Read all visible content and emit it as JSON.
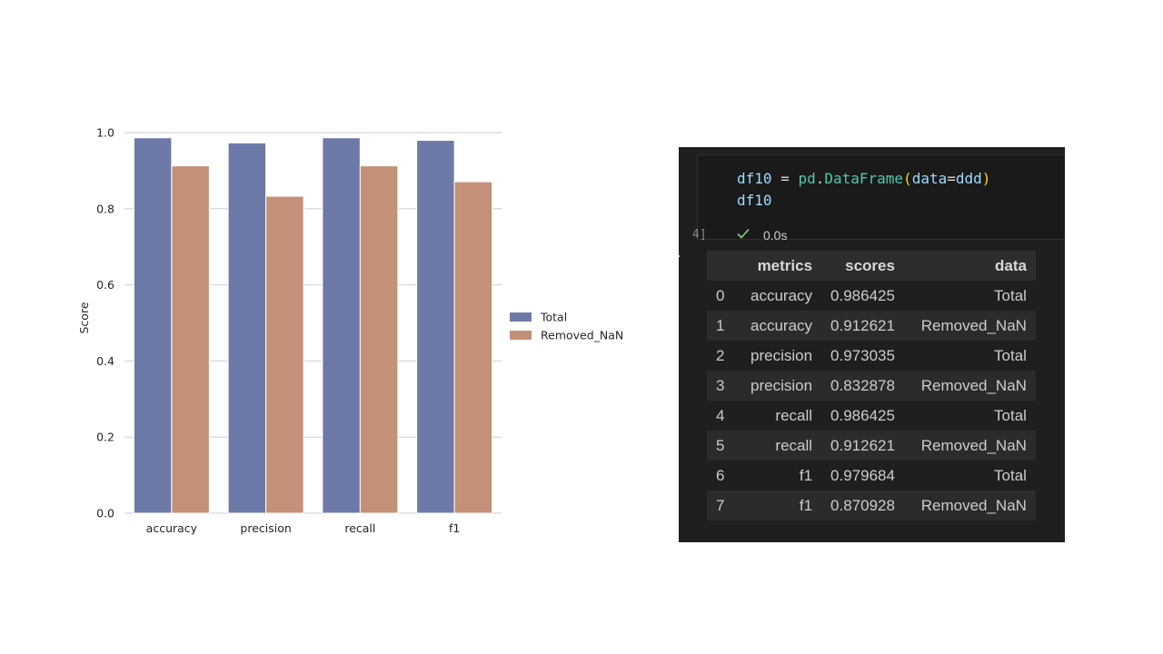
{
  "chart_data": {
    "type": "bar",
    "categories": [
      "accuracy",
      "precision",
      "recall",
      "f1"
    ],
    "series": [
      {
        "name": "Total",
        "values": [
          0.986425,
          0.973035,
          0.986425,
          0.979684
        ]
      },
      {
        "name": "Removed_NaN",
        "values": [
          0.912621,
          0.832878,
          0.912621,
          0.870928
        ]
      }
    ],
    "title": "",
    "xlabel": "",
    "ylabel": "Score",
    "ylim": [
      0,
      1.0
    ],
    "yticks": [
      "0.0",
      "0.2",
      "0.4",
      "0.6",
      "0.8",
      "1.0"
    ],
    "grid": true,
    "legend_position": "right",
    "colors": {
      "Total": "#6d7aa8",
      "Removed_NaN": "#c49078"
    }
  },
  "notebook": {
    "exec_count": "4]",
    "exec_time": "0.0s",
    "code": {
      "line1": {
        "var": "df10",
        "eq": " = ",
        "mod": "pd",
        "dot": ".",
        "cls": "DataFrame",
        "open": "(",
        "arg": "data",
        "argeq": "=",
        "val": "ddd",
        "close": ")"
      },
      "line2": "df10"
    },
    "table": {
      "headers": [
        "",
        "metrics",
        "scores",
        "data"
      ],
      "rows": [
        [
          "0",
          "accuracy",
          "0.986425",
          "Total"
        ],
        [
          "1",
          "accuracy",
          "0.912621",
          "Removed_NaN"
        ],
        [
          "2",
          "precision",
          "0.973035",
          "Total"
        ],
        [
          "3",
          "precision",
          "0.832878",
          "Removed_NaN"
        ],
        [
          "4",
          "recall",
          "0.986425",
          "Total"
        ],
        [
          "5",
          "recall",
          "0.912621",
          "Removed_NaN"
        ],
        [
          "6",
          "f1",
          "0.979684",
          "Total"
        ],
        [
          "7",
          "f1",
          "0.870928",
          "Removed_NaN"
        ]
      ]
    }
  }
}
